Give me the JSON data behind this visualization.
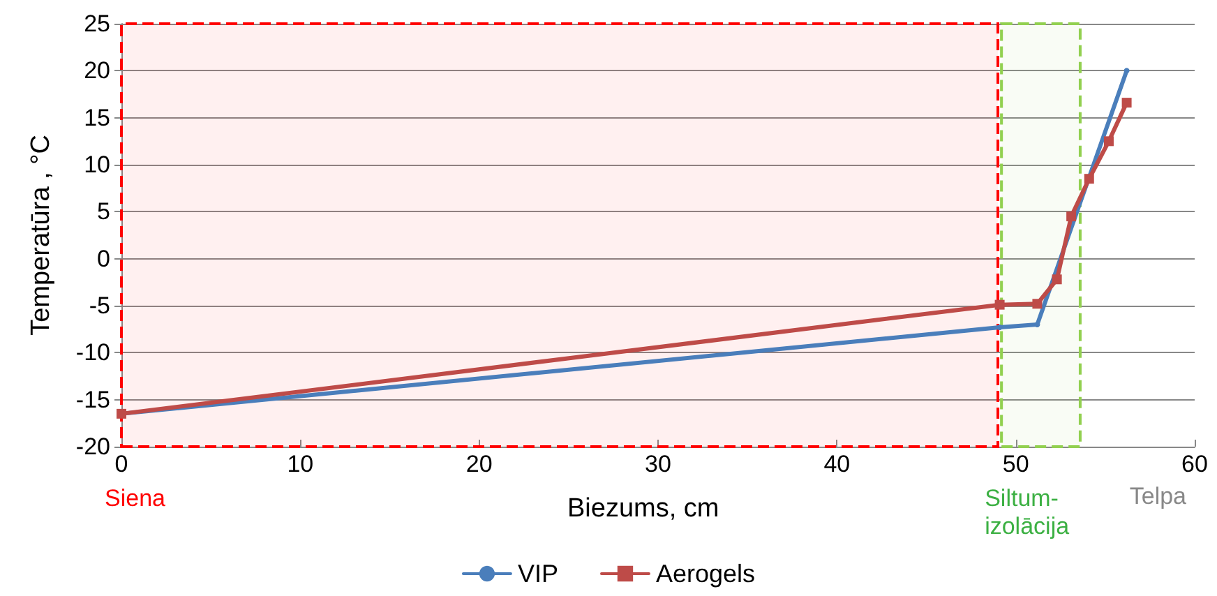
{
  "chart_data": {
    "type": "line",
    "xlabel": "Biezums, cm",
    "ylabel": "Temperatūra , °C",
    "xlim": [
      0,
      60
    ],
    "xticks": [
      0,
      10,
      20,
      30,
      40,
      50,
      60
    ],
    "ylim": [
      -20,
      25
    ],
    "yticks": [
      -20,
      -15,
      -10,
      -5,
      0,
      5,
      10,
      15,
      20,
      25
    ],
    "grid": "y",
    "legend": "bottom",
    "line_style": "solid",
    "series": [
      {
        "name": "VIP",
        "color": "#4a7ebb",
        "marker": "circle",
        "x": [
          0,
          49.1,
          51.2,
          56.2
        ],
        "values": [
          -16.5,
          -7.3,
          -7.0,
          20
        ]
      },
      {
        "name": "Aerogels",
        "color": "#be4b48",
        "marker": "square",
        "x": [
          0,
          49.1,
          51.2,
          52.3,
          53.1,
          54.1,
          55.2,
          56.2
        ],
        "values": [
          -16.5,
          -4.9,
          -4.8,
          -2.2,
          4.5,
          8.5,
          12.5,
          16.6
        ]
      }
    ],
    "bands": [
      {
        "axis": "x",
        "from": 0,
        "to": 49,
        "label": "Siena",
        "color": "#ff0000"
      },
      {
        "axis": "x",
        "from": 49.2,
        "to": 53.6,
        "label": "Siltum-\nizolācija",
        "color": "#92d050"
      }
    ],
    "annotations": [
      "Telpa"
    ]
  }
}
